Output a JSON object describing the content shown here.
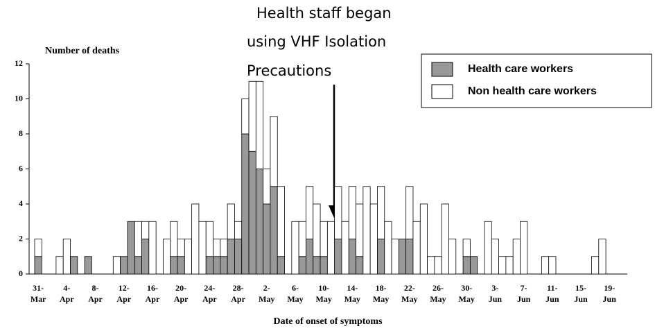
{
  "chart_data": {
    "type": "stacked_bar",
    "title": "Number of deaths",
    "x_label": "Date of onset of symptoms",
    "annotation": [
      "Health staff began",
      "using VHF Isolation",
      "Precautions"
    ],
    "categories": [
      "31- Mar",
      null,
      null,
      null,
      "4- Apr",
      null,
      null,
      null,
      "8- Apr",
      null,
      null,
      null,
      "12- Apr",
      null,
      null,
      null,
      "16- Apr",
      null,
      null,
      null,
      "20- Apr",
      null,
      null,
      null,
      "24- Apr",
      null,
      null,
      null,
      "28- Apr",
      null,
      null,
      null,
      "2- May",
      null,
      null,
      null,
      "6- May",
      null,
      null,
      null,
      "10- May",
      null,
      null,
      null,
      "14- May",
      null,
      null,
      null,
      "18- May",
      null,
      null,
      null,
      "22- May",
      null,
      null,
      null,
      "26- May",
      null,
      null,
      null,
      "30- May",
      null,
      null,
      null,
      "3- Jun",
      null,
      null,
      null,
      "7- Jun",
      null,
      null,
      null,
      "11- Jun",
      null,
      null,
      null,
      "15- Jun",
      null,
      null,
      null,
      "19- Jun",
      null,
      null
    ],
    "series": [
      {
        "name": "Health care workers",
        "color": "#999999",
        "values": [
          1,
          0,
          0,
          0,
          0,
          1,
          0,
          1,
          0,
          0,
          0,
          0,
          1,
          3,
          1,
          2,
          0,
          0,
          0,
          1,
          1,
          0,
          0,
          0,
          1,
          1,
          1,
          2,
          2,
          8,
          7,
          6,
          4,
          5,
          1,
          0,
          0,
          1,
          2,
          1,
          1,
          0,
          2,
          0,
          2,
          1,
          0,
          0,
          2,
          0,
          0,
          2,
          2,
          0,
          0,
          0,
          0,
          0,
          0,
          0,
          1,
          1,
          0,
          0,
          0,
          0,
          0,
          0,
          0,
          0,
          0,
          0,
          0,
          0,
          0,
          0,
          0,
          0,
          0,
          0,
          0,
          0,
          0
        ]
      },
      {
        "name": "Non health care workers",
        "color": "#ffffff",
        "values": [
          1,
          0,
          0,
          1,
          2,
          0,
          0,
          0,
          0,
          0,
          0,
          1,
          0,
          0,
          2,
          1,
          3,
          0,
          2,
          2,
          1,
          2,
          4,
          3,
          2,
          1,
          1,
          2,
          1,
          2,
          4,
          5,
          2,
          4,
          4,
          0,
          3,
          2,
          3,
          3,
          2,
          3,
          3,
          3,
          3,
          3,
          5,
          4,
          3,
          3,
          2,
          0,
          3,
          3,
          4,
          1,
          1,
          4,
          2,
          0,
          1,
          0,
          0,
          3,
          2,
          1,
          1,
          2,
          3,
          0,
          0,
          1,
          1,
          0,
          0,
          0,
          0,
          0,
          1,
          2,
          0,
          0,
          0
        ]
      }
    ],
    "ylim": [
      0,
      12
    ],
    "yticks": [
      0,
      2,
      4,
      6,
      8,
      10,
      12
    ],
    "legend": "top-right"
  }
}
